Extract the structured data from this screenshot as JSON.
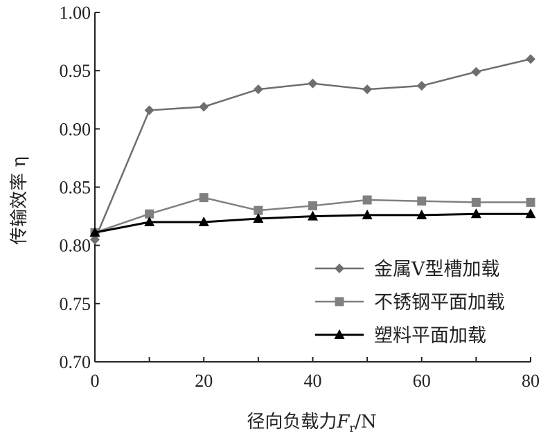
{
  "chart_data": {
    "type": "line",
    "title": "",
    "xlabel": "径向负载力",
    "xlabel_symbol": "F",
    "xlabel_subscript": "r",
    "xlabel_unit": "/N",
    "ylabel": "传输效率 η",
    "xlim": [
      0,
      80
    ],
    "ylim": [
      0.7,
      1.0
    ],
    "x_ticks": [
      "0",
      "20",
      "40",
      "60",
      "80"
    ],
    "y_ticks": [
      "0.70",
      "0.75",
      "0.80",
      "0.85",
      "0.90",
      "0.95",
      "1.00"
    ],
    "grid": false,
    "legend_position": "bottom-right",
    "x": [
      0,
      10,
      20,
      30,
      40,
      50,
      60,
      70,
      80
    ],
    "series": [
      {
        "name": "金属V型槽加载",
        "marker": "diamond",
        "color": "#6e6e6e",
        "values": [
          0.805,
          0.916,
          0.919,
          0.934,
          0.939,
          0.934,
          0.937,
          0.949,
          0.96
        ]
      },
      {
        "name": "不锈钢平面加载",
        "marker": "square",
        "color": "#808080",
        "values": [
          0.811,
          0.827,
          0.841,
          0.83,
          0.834,
          0.839,
          0.838,
          0.837,
          0.837
        ]
      },
      {
        "name": "塑料平面加载",
        "marker": "triangle",
        "color": "#000000",
        "values": [
          0.811,
          0.82,
          0.82,
          0.823,
          0.825,
          0.826,
          0.826,
          0.827,
          0.827
        ]
      }
    ]
  }
}
